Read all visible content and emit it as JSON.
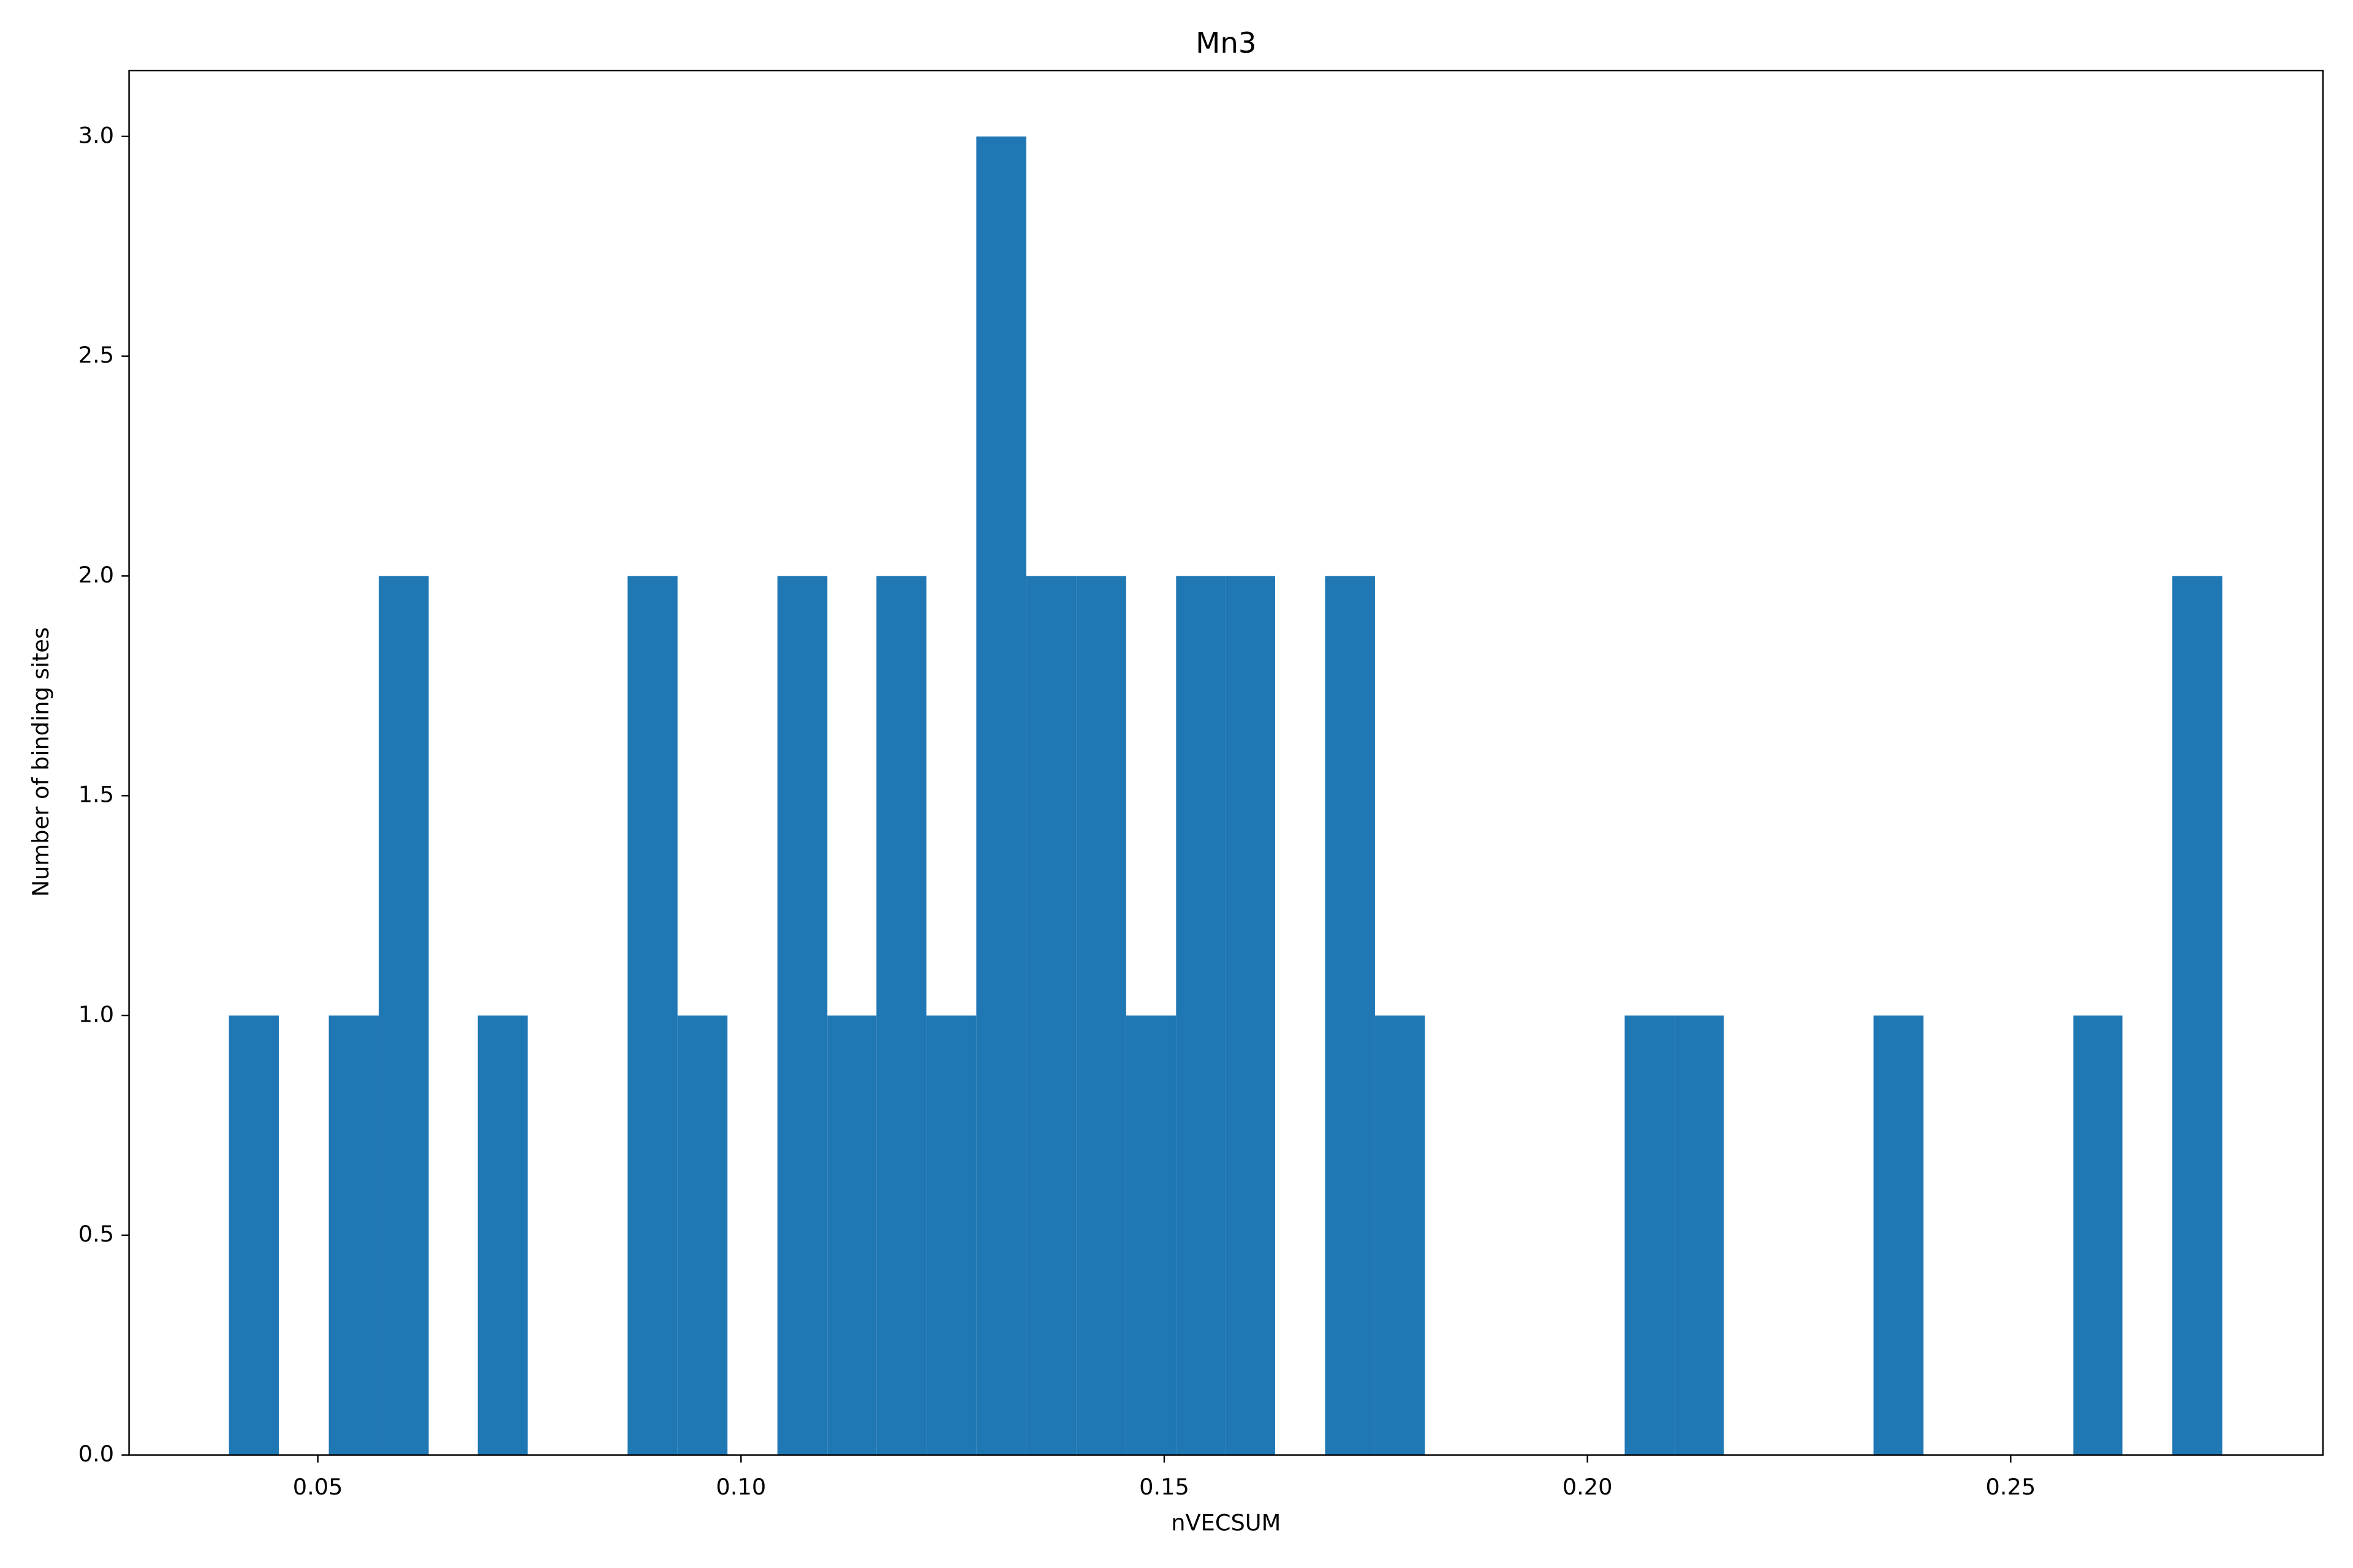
{
  "chart_data": {
    "type": "histogram",
    "title": "Mn3",
    "x_label": "nVECSUM",
    "y_label": "Number of binding sites",
    "color": "#1f77b4",
    "bins": [
      0.0395,
      0.0454,
      0.0513,
      0.0572,
      0.0631,
      0.0689,
      0.0748,
      0.0807,
      0.0866,
      0.0925,
      0.0984,
      0.1043,
      0.1102,
      0.116,
      0.1219,
      0.1278,
      0.1337,
      0.1396,
      0.1455,
      0.1514,
      0.1573,
      0.1631,
      0.169,
      0.1749,
      0.1808,
      0.1867,
      0.1926,
      0.1985,
      0.2044,
      0.2103,
      0.2161,
      0.222,
      0.2279,
      0.2338,
      0.2397,
      0.2456,
      0.2515,
      0.2574,
      0.2632,
      0.2691,
      0.275
    ],
    "values": [
      1,
      0,
      1,
      2,
      0,
      1,
      0,
      0,
      2,
      1,
      0,
      2,
      1,
      2,
      1,
      3,
      2,
      2,
      1,
      2,
      2,
      0,
      2,
      1,
      0,
      0,
      0,
      0,
      1,
      1,
      0,
      0,
      0,
      1,
      0,
      0,
      0,
      1,
      0,
      2
    ],
    "xlim": [
      0.0277,
      0.2869
    ],
    "xticks": [
      {
        "value": 0.05,
        "label": "0.05"
      },
      {
        "value": 0.1,
        "label": "0.10"
      },
      {
        "value": 0.15,
        "label": "0.15"
      },
      {
        "value": 0.2,
        "label": "0.20"
      },
      {
        "value": 0.25,
        "label": "0.25"
      }
    ],
    "ylim": [
      0,
      3.15
    ],
    "yticks": [
      {
        "value": 0,
        "label": "0.0"
      },
      {
        "value": 0.5,
        "label": "0.5"
      },
      {
        "value": 1,
        "label": "1.0"
      },
      {
        "value": 1.5,
        "label": "1.5"
      },
      {
        "value": 2,
        "label": "2.0"
      },
      {
        "value": 2.5,
        "label": "2.5"
      },
      {
        "value": 3,
        "label": "3.0"
      }
    ]
  }
}
